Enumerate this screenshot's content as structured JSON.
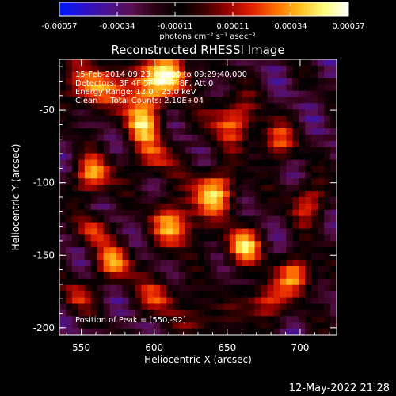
{
  "colorbar": {
    "ticks": [
      "-0.00057",
      "-0.00034",
      "-0.00011",
      "0.00011",
      "0.00034",
      "0.00057"
    ],
    "stops": [
      "#0018ff",
      "#2a12c8",
      "#4a1290",
      "#5a0f50",
      "#2a0010",
      "#000000",
      "#3a0000",
      "#9a0000",
      "#e02000",
      "#ff7000",
      "#ffc020",
      "#ffff80",
      "#ffffff"
    ]
  },
  "chart_data": {
    "type": "heatmap",
    "title": "Reconstructed RHESSI Image",
    "xlabel": "Heliocentric X (arcsec)",
    "ylabel": "Heliocentric Y (arcsec)",
    "xlim": [
      535,
      725
    ],
    "ylim": [
      -205,
      -15
    ],
    "x_ticks": [
      "550",
      "600",
      "650",
      "700"
    ],
    "y_ticks": [
      "-50",
      "-100",
      "-150",
      "-200"
    ],
    "colorbar_label": "photons cm⁻² s⁻¹ asec⁻²",
    "value_range": [
      -0.00057,
      0.00057
    ],
    "peak_position": [
      550,
      -92
    ],
    "annotations": [
      "15-Feb-2014 09:23:40.000 to 09:29:40.000",
      "Detectors: 3F 4F 5F 6F 7F 8F, Att 0",
      "Energy Range: 12.0 - 25.0 keV",
      "Clean     Total Counts: 2.10E+04",
      "Position of Peak = [550,-92]"
    ]
  },
  "footer": {
    "timestamp": "12-May-2022 21:28"
  }
}
